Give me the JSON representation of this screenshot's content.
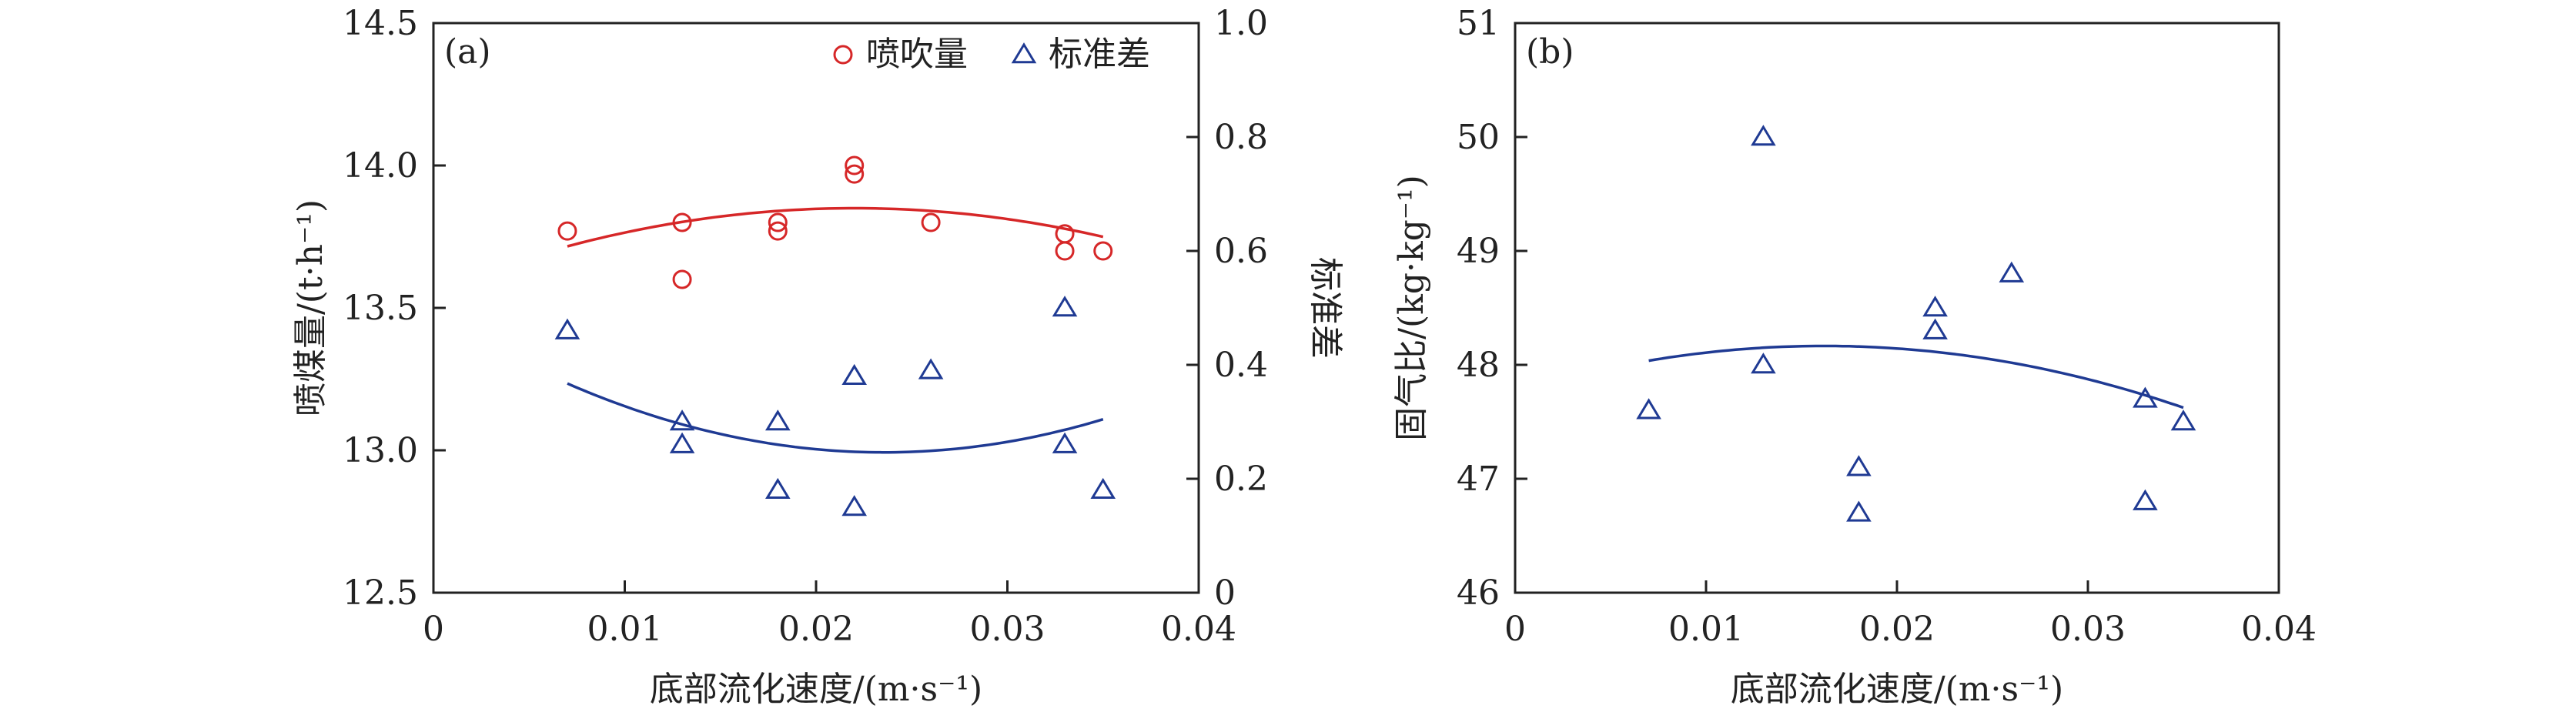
{
  "chart_data": [
    {
      "panel_label": "(a)",
      "type": "scatter",
      "xlabel": "底部流化速度/(m·s⁻¹)",
      "ylabel": "喷煤量/(t·h⁻¹)",
      "y2label": "标准差",
      "xlim": [
        0,
        0.04
      ],
      "ylim": [
        12.5,
        14.5
      ],
      "y2lim": [
        0,
        1.0
      ],
      "xticks": [
        "0",
        "0.01",
        "0.02",
        "0.03",
        "0.04"
      ],
      "yticks": [
        "12.5",
        "13.0",
        "13.5",
        "14.0",
        "14.5"
      ],
      "y2ticks": [
        "0",
        "0.2",
        "0.4",
        "0.6",
        "0.8",
        "1.0"
      ],
      "legend_position": "top-right",
      "series": [
        {
          "name": "喷吹量",
          "axis": "left",
          "marker": "circle",
          "color": "#d62728",
          "x": [
            0.007,
            0.013,
            0.013,
            0.018,
            0.018,
            0.022,
            0.022,
            0.026,
            0.033,
            0.033,
            0.035
          ],
          "y": [
            13.77,
            13.8,
            13.6,
            13.8,
            13.77,
            14.0,
            13.97,
            13.8,
            13.76,
            13.7,
            13.7
          ],
          "fit": {
            "x": [
              0.007,
              0.035
            ],
            "coef": [
              -595.0,
              26.18,
              13.562
            ]
          }
        },
        {
          "name": "标准差",
          "axis": "right",
          "marker": "triangle",
          "color": "#1f3a93",
          "x": [
            0.007,
            0.013,
            0.013,
            0.018,
            0.018,
            0.022,
            0.022,
            0.026,
            0.033,
            0.033,
            0.035
          ],
          "y": [
            0.46,
            0.3,
            0.26,
            0.3,
            0.18,
            0.38,
            0.15,
            0.39,
            0.5,
            0.26,
            0.18
          ],
          "fit": {
            "x": [
              0.007,
              0.035
            ],
            "coef": [
              442.0,
              -20.81,
              0.4913
            ]
          }
        }
      ]
    },
    {
      "panel_label": "(b)",
      "type": "scatter",
      "xlabel": "底部流化速度/(m·s⁻¹)",
      "ylabel": "固气比/(kg·kg⁻¹)",
      "xlim": [
        0,
        0.04
      ],
      "ylim": [
        46,
        51
      ],
      "xticks": [
        "0",
        "0.01",
        "0.02",
        "0.03",
        "0.04"
      ],
      "yticks": [
        "46",
        "47",
        "48",
        "49",
        "50",
        "51"
      ],
      "series": [
        {
          "name": "",
          "marker": "triangle",
          "color": "#1f3a93",
          "x": [
            0.007,
            0.013,
            0.013,
            0.018,
            0.018,
            0.022,
            0.022,
            0.026,
            0.033,
            0.033,
            0.035
          ],
          "y": [
            47.6,
            50.0,
            48.0,
            47.1,
            46.7,
            48.5,
            48.3,
            48.8,
            47.7,
            46.8,
            47.5
          ],
          "fit": {
            "x": [
              0.007,
              0.035
            ],
            "coef": [
              -1530.0,
              49.53,
              47.765
            ]
          }
        }
      ]
    }
  ]
}
